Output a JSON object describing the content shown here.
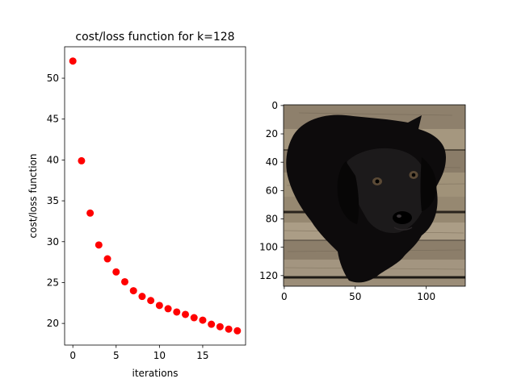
{
  "chart_data": [
    {
      "type": "scatter",
      "title": "cost/loss function for k=128",
      "xlabel": "iterations",
      "ylabel": "cost/loss function",
      "xlim": [
        -0.95,
        19.95
      ],
      "ylim": [
        17.35,
        53.85
      ],
      "xticks": [
        0,
        5,
        10,
        15
      ],
      "yticks": [
        20,
        25,
        30,
        35,
        40,
        45,
        50
      ],
      "marker_color": "#ff0000",
      "series": [
        {
          "x": [
            0,
            1,
            2,
            3,
            4,
            5,
            6,
            7,
            8,
            9,
            10,
            11,
            12,
            13,
            14,
            15,
            16,
            17,
            18,
            19
          ],
          "y": [
            52.1,
            39.9,
            33.5,
            29.6,
            27.9,
            26.3,
            25.1,
            24.0,
            23.3,
            22.8,
            22.2,
            21.8,
            21.4,
            21.1,
            20.7,
            20.4,
            19.9,
            19.6,
            19.3,
            19.1
          ]
        }
      ]
    },
    {
      "type": "image",
      "xlim": [
        -0.5,
        127.5
      ],
      "ylim": [
        127.5,
        -0.5
      ],
      "xticks": [
        0,
        50,
        100
      ],
      "yticks": [
        0,
        20,
        40,
        60,
        80,
        100,
        120
      ]
    }
  ]
}
